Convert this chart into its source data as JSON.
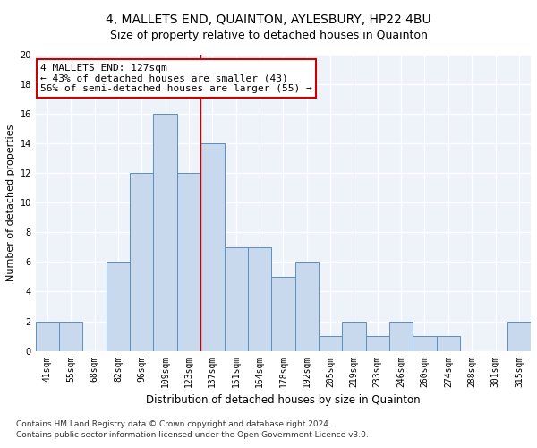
{
  "title1": "4, MALLETS END, QUAINTON, AYLESBURY, HP22 4BU",
  "title2": "Size of property relative to detached houses in Quainton",
  "xlabel": "Distribution of detached houses by size in Quainton",
  "ylabel": "Number of detached properties",
  "categories": [
    "41sqm",
    "55sqm",
    "68sqm",
    "82sqm",
    "96sqm",
    "109sqm",
    "123sqm",
    "137sqm",
    "151sqm",
    "164sqm",
    "178sqm",
    "192sqm",
    "205sqm",
    "219sqm",
    "233sqm",
    "246sqm",
    "260sqm",
    "274sqm",
    "288sqm",
    "301sqm",
    "315sqm"
  ],
  "values": [
    2,
    2,
    0,
    6,
    12,
    16,
    12,
    14,
    7,
    7,
    5,
    6,
    1,
    2,
    1,
    2,
    1,
    1,
    0,
    0,
    2
  ],
  "bar_color": "#c9d9ed",
  "bar_edge_color": "#5a8fc0",
  "annotation_line1": "4 MALLETS END: 127sqm",
  "annotation_line2": "← 43% of detached houses are smaller (43)",
  "annotation_line3": "56% of semi-detached houses are larger (55) →",
  "redline_x": 6.5,
  "ylim": [
    0,
    20
  ],
  "yticks": [
    0,
    2,
    4,
    6,
    8,
    10,
    12,
    14,
    16,
    18,
    20
  ],
  "footer1": "Contains HM Land Registry data © Crown copyright and database right 2024.",
  "footer2": "Contains public sector information licensed under the Open Government Licence v3.0.",
  "bg_color": "#eef2f9",
  "grid_color": "#ffffff",
  "title1_fontsize": 10,
  "title2_fontsize": 9,
  "annot_fontsize": 8,
  "tick_fontsize": 7,
  "ylabel_fontsize": 8,
  "xlabel_fontsize": 8.5,
  "footer_fontsize": 6.5
}
